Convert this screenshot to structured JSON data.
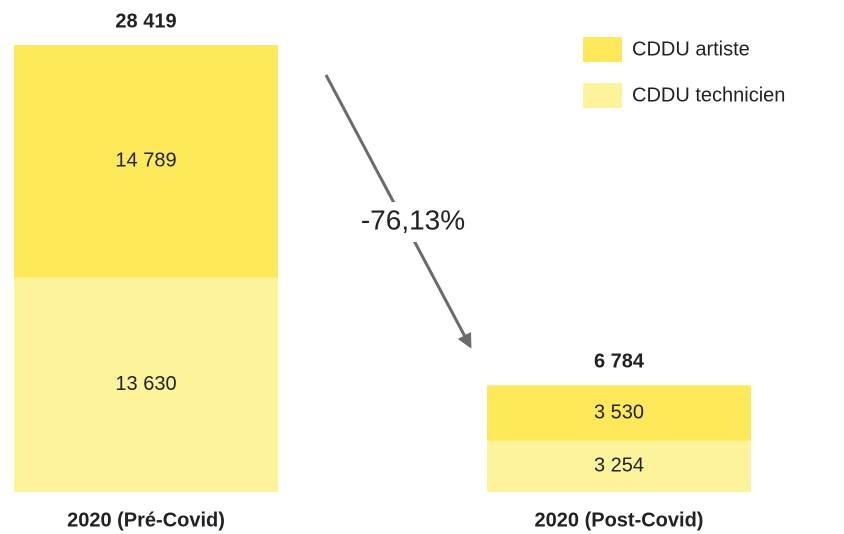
{
  "chart_data": {
    "type": "stacked_bar",
    "categories": [
      "2020 (Pré-Covid)",
      "2020 (Post-Covid)"
    ],
    "series": [
      {
        "name": "CDDU artiste",
        "color": "#fde95a",
        "values": [
          14789,
          3530
        ],
        "value_labels": [
          "14 789",
          "3 530"
        ]
      },
      {
        "name": "CDDU technicien",
        "color": "#fdf39b",
        "values": [
          13630,
          3254
        ],
        "value_labels": [
          "13 630",
          "3 254"
        ]
      }
    ],
    "totals": [
      28419,
      6784
    ],
    "total_labels": [
      "28 419",
      "6 784"
    ],
    "annotation": "-76,13%",
    "legend": "upper right"
  }
}
